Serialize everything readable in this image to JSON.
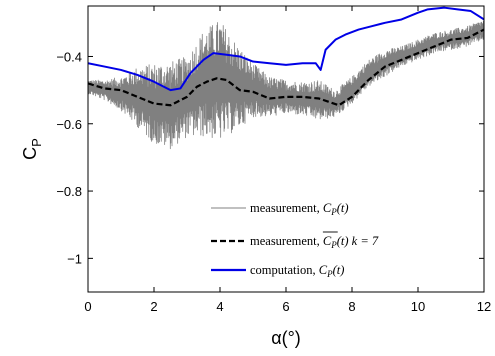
{
  "chart_data": {
    "type": "line",
    "xlabel": "α(°)",
    "ylabel": "C",
    "ylabel_sub": "P",
    "xlim": [
      0,
      12
    ],
    "ylim": [
      -1.1,
      -0.25
    ],
    "xticks": [
      0,
      2,
      4,
      6,
      8,
      10,
      12
    ],
    "xtick_labels": [
      "0",
      "2",
      "4",
      "6",
      "8",
      "10",
      "12"
    ],
    "yticks": [
      -1,
      -0.8,
      -0.6,
      -0.4
    ],
    "ytick_labels": [
      "−1",
      "−0.8",
      "−0.6",
      "−0.4"
    ],
    "grid": false,
    "legend_position": "lower-right",
    "series": [
      {
        "key": "measured",
        "name": "measurement, C_P(t)",
        "legend_prefix": "measurement, ",
        "legend_math": "C",
        "legend_math_sub": "P",
        "legend_math_suffix": "(t)",
        "color": "#808080",
        "style": "solid",
        "noisy": true,
        "x": [
          0,
          0.5,
          1,
          1.5,
          2,
          2.5,
          3,
          3.5,
          4,
          4.5,
          5,
          5.5,
          6,
          6.5,
          7,
          7.5,
          8,
          8.5,
          9,
          9.5,
          10,
          10.5,
          11,
          11.5,
          12
        ],
        "y": [
          -0.49,
          -0.5,
          -0.51,
          -0.52,
          -0.54,
          -0.545,
          -0.52,
          -0.48,
          -0.47,
          -0.49,
          -0.5,
          -0.52,
          -0.52,
          -0.525,
          -0.53,
          -0.54,
          -0.5,
          -0.45,
          -0.42,
          -0.4,
          -0.38,
          -0.36,
          -0.35,
          -0.34,
          -0.32
        ],
        "amplitude": [
          0.02,
          0.03,
          0.05,
          0.09,
          0.12,
          0.13,
          0.12,
          0.16,
          0.18,
          0.13,
          0.08,
          0.06,
          0.05,
          0.05,
          0.06,
          0.04,
          0.04,
          0.04,
          0.04,
          0.03,
          0.03,
          0.03,
          0.03,
          0.03,
          0.03
        ]
      },
      {
        "key": "filtered",
        "name": "measurement, C_P(t) k = 7",
        "legend_prefix": "measurement, ",
        "legend_math": "C",
        "legend_math_sub": "P",
        "legend_math_suffix": "(t) k = 7",
        "legend_overline": true,
        "color": "#000000",
        "style": "dashed",
        "x": [
          0,
          0.5,
          1,
          1.5,
          2,
          2.5,
          3,
          3.3,
          3.6,
          3.9,
          4.2,
          4.6,
          5,
          5.5,
          6,
          6.5,
          7,
          7.3,
          7.6,
          8,
          8.5,
          9,
          9.5,
          10,
          10.5,
          11,
          11.5,
          12
        ],
        "y": [
          -0.48,
          -0.495,
          -0.5,
          -0.52,
          -0.54,
          -0.545,
          -0.52,
          -0.49,
          -0.475,
          -0.465,
          -0.47,
          -0.5,
          -0.505,
          -0.525,
          -0.52,
          -0.52,
          -0.525,
          -0.535,
          -0.545,
          -0.52,
          -0.47,
          -0.43,
          -0.41,
          -0.39,
          -0.37,
          -0.35,
          -0.345,
          -0.32
        ]
      },
      {
        "key": "computed",
        "name": "computation, C_P(t)",
        "legend_prefix": "computation, ",
        "legend_math": "C",
        "legend_math_sub": "P",
        "legend_math_suffix": "(t)",
        "color": "#0000e6",
        "style": "solid",
        "x": [
          0,
          0.5,
          1,
          1.5,
          2,
          2.5,
          2.8,
          3.1,
          3.5,
          3.8,
          4.2,
          4.6,
          5,
          5.5,
          6,
          6.5,
          6.9,
          7.05,
          7.2,
          7.5,
          7.8,
          8.2,
          8.6,
          9,
          9.5,
          10,
          10.3,
          10.8,
          11.2,
          11.6,
          12
        ],
        "y": [
          -0.42,
          -0.43,
          -0.44,
          -0.455,
          -0.475,
          -0.5,
          -0.495,
          -0.45,
          -0.41,
          -0.39,
          -0.395,
          -0.4,
          -0.415,
          -0.42,
          -0.425,
          -0.42,
          -0.42,
          -0.44,
          -0.38,
          -0.35,
          -0.335,
          -0.32,
          -0.31,
          -0.3,
          -0.29,
          -0.27,
          -0.26,
          -0.255,
          -0.26,
          -0.265,
          -0.29
        ]
      }
    ]
  }
}
